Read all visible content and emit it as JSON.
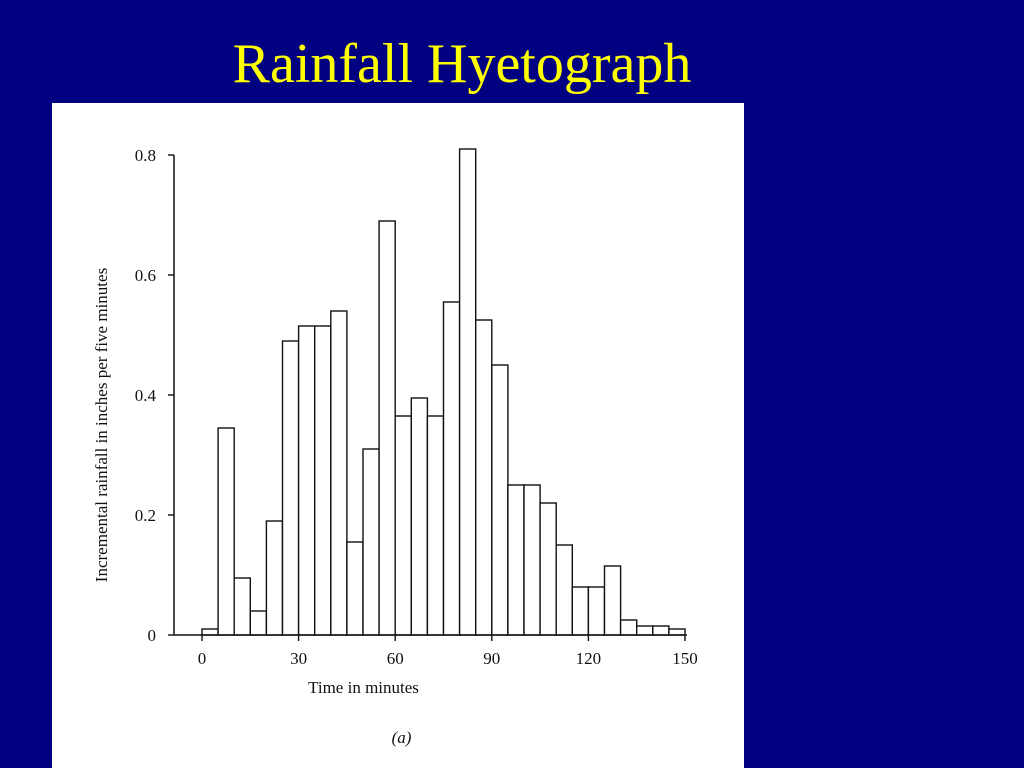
{
  "slide": {
    "title": "Rainfall Hyetograph",
    "background_color": "#000080",
    "title_color": "#ffff00"
  },
  "chart_data": {
    "type": "bar",
    "xlabel": "Time in minutes",
    "ylabel": "Incremental rainfall in inches per five minutes",
    "caption": "(a)",
    "xlim": [
      0,
      150
    ],
    "ylim": [
      0,
      0.8
    ],
    "xticks": [
      0,
      30,
      60,
      90,
      120,
      150
    ],
    "yticks": [
      0,
      0.2,
      0.4,
      0.6,
      0.8
    ],
    "xtick_labels": [
      "0",
      "30",
      "60",
      "90",
      "120",
      "150"
    ],
    "ytick_labels": [
      "0",
      "0.2",
      "0.4",
      "0.6",
      "0.8"
    ],
    "bin_width": 5,
    "bin_starts": [
      0,
      5,
      10,
      15,
      20,
      25,
      30,
      35,
      40,
      45,
      50,
      55,
      60,
      65,
      70,
      75,
      80,
      85,
      90,
      95,
      100,
      105,
      110,
      115,
      120,
      125,
      130,
      135,
      140,
      145
    ],
    "values": [
      0.01,
      0.345,
      0.095,
      0.04,
      0.19,
      0.49,
      0.515,
      0.515,
      0.54,
      0.155,
      0.31,
      0.69,
      0.365,
      0.395,
      0.365,
      0.555,
      0.81,
      0.525,
      0.45,
      0.25,
      0.25,
      0.22,
      0.15,
      0.08,
      0.08,
      0.115,
      0.025,
      0.015,
      0.015,
      0.01
    ],
    "grid": false,
    "legend": "none"
  }
}
